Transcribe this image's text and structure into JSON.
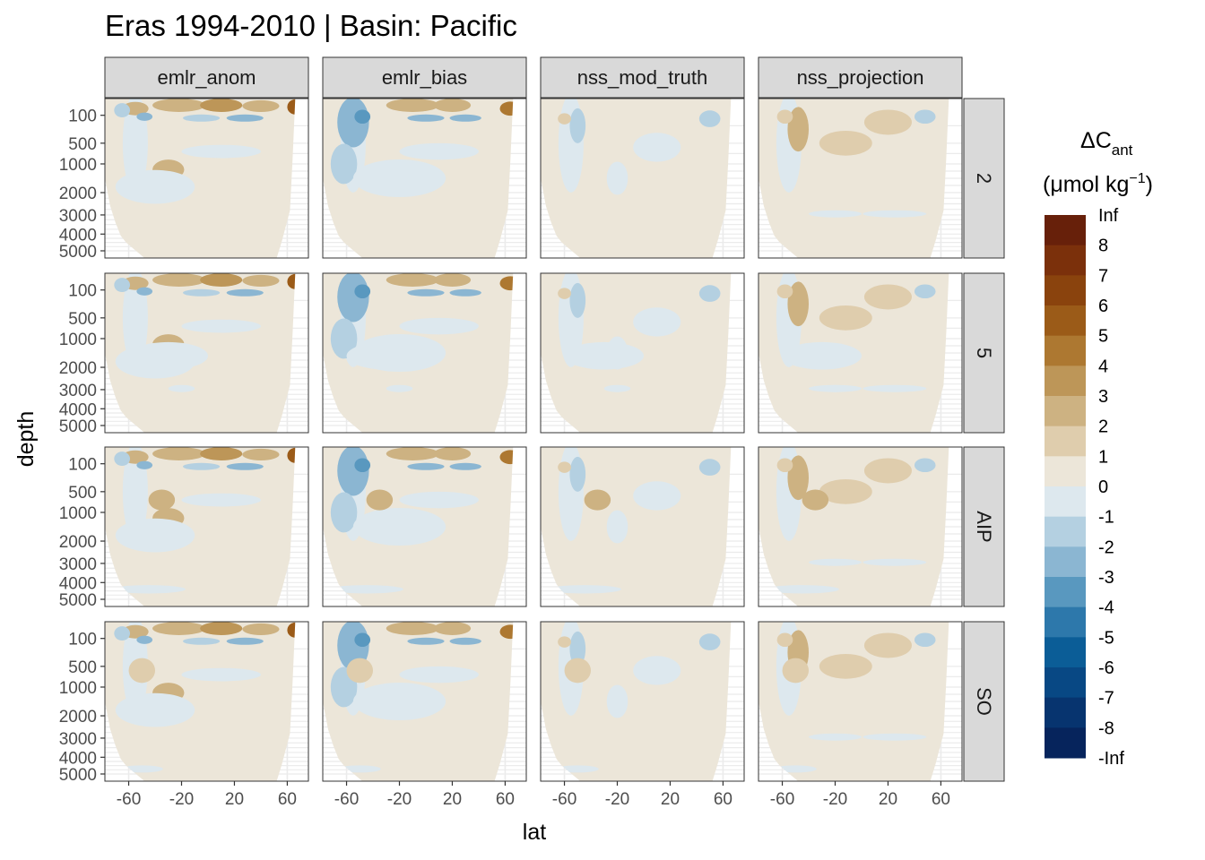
{
  "chart_data": {
    "type": "heatmap",
    "title": "Eras 1994-2010 | Basin: Pacific",
    "xlabel": "lat",
    "ylabel": "depth",
    "columns": [
      "emlr_anom",
      "emlr_bias",
      "nss_mod_truth",
      "nss_projection"
    ],
    "rows": [
      "2",
      "5",
      "AIP",
      "SO"
    ],
    "x_ticks": [
      "-60",
      "-20",
      "20",
      "60"
    ],
    "x_tick_values": [
      -60,
      -20,
      20,
      60
    ],
    "y_ticks": [
      "100",
      "500",
      "1000",
      "2000",
      "3000",
      "4000",
      "5000"
    ],
    "y_tick_values": [
      100,
      500,
      1000,
      2000,
      3000,
      4000,
      5000
    ],
    "xlim": [
      -78,
      76
    ],
    "ylim": [
      5200,
      0
    ],
    "legend": {
      "title_main": "ΔC",
      "title_sub": "ant",
      "unit_pre": "(μmol kg",
      "unit_sup": "−1",
      "unit_post": ")",
      "labels": [
        "Inf",
        "8",
        "7",
        "6",
        "5",
        "4",
        "3",
        "2",
        "1",
        "0",
        "-1",
        "-2",
        "-3",
        "-4",
        "-5",
        "-6",
        "-7",
        "-8",
        "-Inf"
      ],
      "colors": [
        "#67200a",
        "#7b300b",
        "#8a430d",
        "#9b5b18",
        "#ad7831",
        "#bd9658",
        "#cdb282",
        "#dfcdad",
        "#ece6d9",
        "#dde8ee",
        "#b4d0e1",
        "#8bb6d2",
        "#5998bf",
        "#2d78ab",
        "#0b5d97",
        "#084884",
        "#07346f",
        "#06245c",
        "#051a4f"
      ],
      "placement": "right"
    }
  }
}
